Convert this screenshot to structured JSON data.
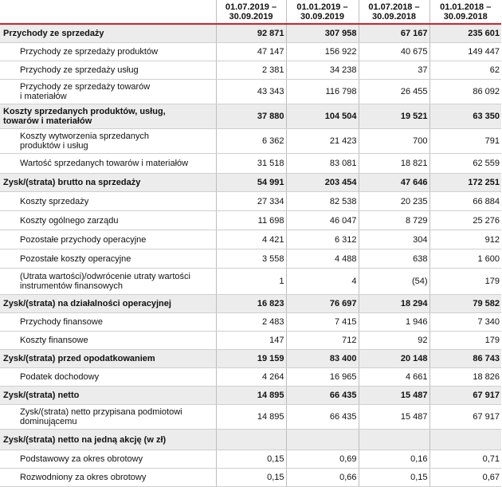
{
  "columns": [
    "01.07.2019 –\n30.09.2019",
    "01.01.2019 –\n30.09.2019",
    "01.07.2018 –\n30.09.2018",
    "01.01.2018 –\n30.09.2018"
  ],
  "rows": [
    {
      "label": "Przychody ze sprzedaży",
      "bold": true,
      "v": [
        "92 871",
        "307 958",
        "67 167",
        "235 601"
      ]
    },
    {
      "label": "Przychody ze sprzedaży produktów",
      "bold": false,
      "v": [
        "47 147",
        "156 922",
        "40 675",
        "149 447"
      ]
    },
    {
      "label": "Przychody ze sprzedaży usług",
      "bold": false,
      "v": [
        "2 381",
        "34 238",
        "37",
        "62"
      ]
    },
    {
      "label": "Przychody ze sprzedaży towarów\ni materiałów",
      "bold": false,
      "v": [
        "43 343",
        "116 798",
        "26 455",
        "86 092"
      ]
    },
    {
      "label": "Koszty sprzedanych produktów, usług,\ntowarów i materiałów",
      "bold": true,
      "v": [
        "37 880",
        "104 504",
        "19 521",
        "63 350"
      ]
    },
    {
      "label": "Koszty wytworzenia sprzedanych\nproduktów i usług",
      "bold": false,
      "v": [
        "6 362",
        "21 423",
        "700",
        "791"
      ]
    },
    {
      "label": "Wartość sprzedanych towarów i materiałów",
      "bold": false,
      "v": [
        "31 518",
        "83 081",
        "18 821",
        "62 559"
      ]
    },
    {
      "label": "Zysk/(strata) brutto na sprzedaży",
      "bold": true,
      "v": [
        "54 991",
        "203 454",
        "47 646",
        "172 251"
      ]
    },
    {
      "label": "Koszty sprzedaży",
      "bold": false,
      "v": [
        "27 334",
        "82 538",
        "20 235",
        "66 884"
      ]
    },
    {
      "label": "Koszty ogólnego zarządu",
      "bold": false,
      "v": [
        "11 698",
        "46 047",
        "8 729",
        "25 276"
      ]
    },
    {
      "label": "Pozostałe przychody operacyjne",
      "bold": false,
      "v": [
        "4 421",
        "6 312",
        "304",
        "912"
      ]
    },
    {
      "label": "Pozostałe koszty operacyjne",
      "bold": false,
      "v": [
        "3 558",
        "4 488",
        "638",
        "1 600"
      ]
    },
    {
      "label": "(Utrata wartości)/odwrócenie utraty wartości\ninstrumentów finansowych",
      "bold": false,
      "v": [
        "1",
        "4",
        "(54)",
        "179"
      ]
    },
    {
      "label": "Zysk/(strata) na działalności operacyjnej",
      "bold": true,
      "v": [
        "16 823",
        "76 697",
        "18 294",
        "79 582"
      ]
    },
    {
      "label": "Przychody finansowe",
      "bold": false,
      "v": [
        "2 483",
        "7 415",
        "1 946",
        "7 340"
      ]
    },
    {
      "label": "Koszty finansowe",
      "bold": false,
      "v": [
        "147",
        "712",
        "92",
        "179"
      ]
    },
    {
      "label": "Zysk/(strata) przed opodatkowaniem",
      "bold": true,
      "v": [
        "19 159",
        "83 400",
        "20 148",
        "86 743"
      ]
    },
    {
      "label": "Podatek dochodowy",
      "bold": false,
      "v": [
        "4 264",
        "16 965",
        "4 661",
        "18 826"
      ]
    },
    {
      "label": "Zysk/(strata) netto",
      "bold": true,
      "v": [
        "14 895",
        "66 435",
        "15 487",
        "67 917"
      ]
    },
    {
      "label": "Zysk/(strata) netto przypisana podmiotowi\ndominującemu",
      "bold": false,
      "v": [
        "14 895",
        "66 435",
        "15 487",
        "67 917"
      ]
    },
    {
      "label": "Zysk/(strata) netto na jedną akcję (w zł)",
      "bold": true,
      "v": [
        "",
        "",
        "",
        ""
      ]
    },
    {
      "label": "Podstawowy za okres obrotowy",
      "bold": false,
      "v": [
        "0,15",
        "0,69",
        "0,16",
        "0,71"
      ]
    },
    {
      "label": "Rozwodniony za okres obrotowy",
      "bold": false,
      "v": [
        "0,15",
        "0,66",
        "0,15",
        "0,67"
      ]
    }
  ]
}
